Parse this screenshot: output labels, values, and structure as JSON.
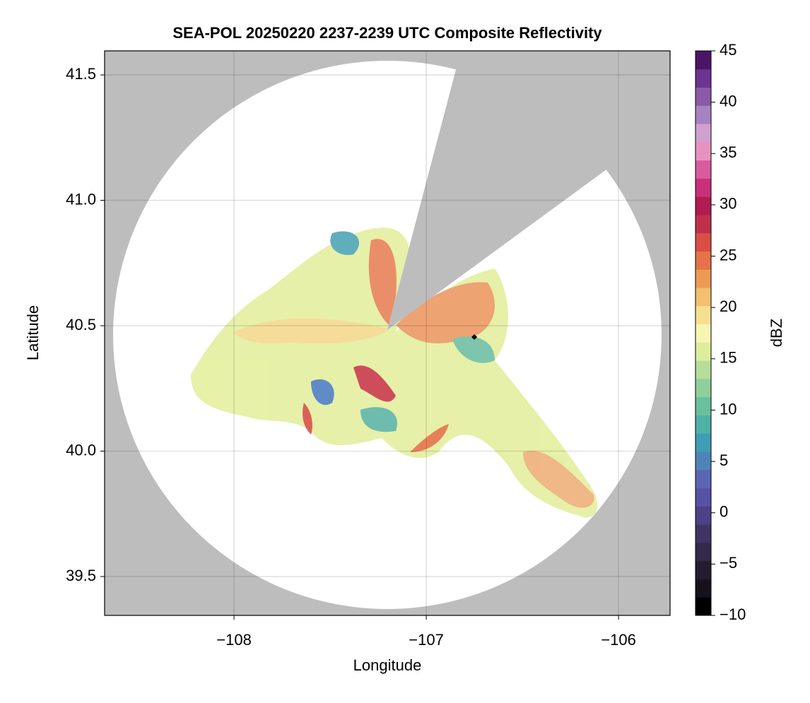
{
  "chart_data": {
    "type": "radar-map",
    "title": "SEA-POL 20250220 2237-2239 UTC Composite Reflectivity",
    "xlabel": "Longitude",
    "ylabel": "Latitude",
    "xlim": [
      -108.673,
      -105.732
    ],
    "ylim": [
      39.345,
      41.596
    ],
    "xticks": [
      {
        "value": -108,
        "label": "−108"
      },
      {
        "value": -107,
        "label": "−107"
      },
      {
        "value": -106,
        "label": "−106"
      }
    ],
    "yticks": [
      39.5,
      {
        "value": 40,
        "label": "40.0"
      },
      40.5,
      {
        "value": 41,
        "label": "41.0"
      },
      41.5
    ],
    "grid": true,
    "series": [
      {
        "x": [
          -106.75
        ],
        "y": [
          40.455
        ],
        "color": "#000000"
      }
    ],
    "colorbar": {
      "label": "dBZ",
      "lim": [
        -10,
        45
      ],
      "ticks": [
        {
          "value": -10,
          "label": "−10"
        },
        {
          "value": -5,
          "label": "−5"
        },
        0,
        5,
        10,
        15,
        20,
        25,
        30,
        35,
        40,
        45
      ],
      "colors": [
        "#000000",
        "#16121c",
        "#241d30",
        "#33294a",
        "#403465",
        "#4c4286",
        "#5752a3",
        "#5b67b2",
        "#4f84b8",
        "#3f9db6",
        "#4fb0a6",
        "#6abf9c",
        "#8ecf9b",
        "#b6de98",
        "#dcee9e",
        "#f7f5b2",
        "#f7df92",
        "#f2c070",
        "#ee9a55",
        "#e57347",
        "#d94f45",
        "#c0304a",
        "#b01b52",
        "#c8307a",
        "#da5a9e",
        "#e892c2",
        "#cfa0d0",
        "#a882c0",
        "#8a5aa8",
        "#6b3590",
        "#4a1566"
      ]
    }
  }
}
